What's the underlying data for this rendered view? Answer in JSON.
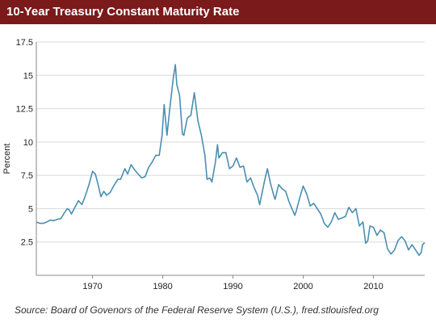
{
  "header": {
    "title": "10-Year Treasury Constant Maturity Rate"
  },
  "footer": {
    "source": "Source: Board of Govenors of the Federal Reserve System (U.S.), fred.stlouisfed.org"
  },
  "colors": {
    "title_bg": "#7b1a1a",
    "line": "#4a8fb0",
    "grid": "#d9d9d9",
    "axis": "#888888"
  },
  "chart_data": {
    "type": "line",
    "title": "10-Year Treasury Constant Maturity Rate",
    "xlabel": "",
    "ylabel": "Percent",
    "xlim": [
      1962,
      2017.3
    ],
    "ylim": [
      0,
      17.5
    ],
    "xticks": [
      1970,
      1980,
      1990,
      2000,
      2010
    ],
    "yticks": [
      2.5,
      5,
      7.5,
      10,
      12.5,
      15,
      17.5
    ],
    "ytick_labels": [
      "2.5",
      "5",
      "7.5",
      "10",
      "12.5",
      "15",
      "17.5"
    ],
    "grid": "horizontal",
    "legend": "none",
    "series": [
      {
        "x": [
          1962.0,
          1962.5,
          1963.0,
          1963.5,
          1964.0,
          1964.5,
          1965.0,
          1965.5,
          1966.0,
          1966.4,
          1966.7,
          1967.0,
          1967.5,
          1968.0,
          1968.5,
          1969.0,
          1969.5,
          1970.0,
          1970.4,
          1970.8,
          1971.2,
          1971.6,
          1972.0,
          1972.5,
          1973.0,
          1973.6,
          1974.0,
          1974.6,
          1975.0,
          1975.5,
          1976.0,
          1976.5,
          1977.0,
          1977.5,
          1978.0,
          1978.5,
          1979.0,
          1979.5,
          1979.9,
          1980.2,
          1980.6,
          1981.0,
          1981.5,
          1981.8,
          1982.0,
          1982.4,
          1982.8,
          1983.0,
          1983.5,
          1984.0,
          1984.5,
          1985.0,
          1985.5,
          1986.0,
          1986.3,
          1986.7,
          1987.0,
          1987.5,
          1987.8,
          1988.0,
          1988.5,
          1989.0,
          1989.5,
          1990.0,
          1990.5,
          1991.0,
          1991.5,
          1992.0,
          1992.5,
          1993.0,
          1993.5,
          1993.8,
          1994.0,
          1994.5,
          1994.9,
          1995.3,
          1995.8,
          1996.0,
          1996.5,
          1997.0,
          1997.5,
          1998.0,
          1998.8,
          1999.0,
          1999.5,
          2000.0,
          2000.5,
          2001.0,
          2001.5,
          2002.0,
          2002.5,
          2003.0,
          2003.5,
          2004.0,
          2004.5,
          2005.0,
          2005.5,
          2006.0,
          2006.5,
          2007.0,
          2007.5,
          2008.0,
          2008.5,
          2008.9,
          2009.2,
          2009.5,
          2010.0,
          2010.5,
          2011.0,
          2011.5,
          2012.0,
          2012.5,
          2013.0,
          2013.5,
          2014.0,
          2014.5,
          2015.0,
          2015.5,
          2016.0,
          2016.5,
          2016.8,
          2017.0,
          2017.3
        ],
        "y": [
          4.0,
          3.9,
          3.9,
          4.0,
          4.15,
          4.1,
          4.2,
          4.25,
          4.7,
          5.0,
          4.9,
          4.6,
          5.1,
          5.6,
          5.3,
          6.0,
          6.8,
          7.8,
          7.6,
          6.8,
          5.9,
          6.3,
          6.0,
          6.2,
          6.7,
          7.2,
          7.2,
          8.0,
          7.6,
          8.3,
          7.9,
          7.6,
          7.3,
          7.4,
          8.1,
          8.5,
          9.0,
          9.0,
          10.5,
          12.8,
          10.5,
          12.5,
          14.8,
          15.8,
          14.3,
          13.5,
          10.6,
          10.5,
          11.8,
          12.0,
          13.7,
          11.6,
          10.5,
          9.0,
          7.2,
          7.3,
          7.0,
          8.5,
          9.8,
          8.8,
          9.2,
          9.2,
          8.0,
          8.2,
          8.8,
          8.1,
          8.2,
          7.0,
          7.3,
          6.6,
          6.0,
          5.3,
          5.8,
          7.1,
          8.0,
          7.0,
          6.0,
          5.7,
          6.8,
          6.5,
          6.3,
          5.5,
          4.5,
          4.8,
          5.8,
          6.7,
          6.1,
          5.2,
          5.4,
          5.0,
          4.6,
          3.9,
          3.6,
          4.0,
          4.7,
          4.2,
          4.3,
          4.4,
          5.1,
          4.7,
          5.0,
          3.7,
          4.0,
          2.4,
          2.6,
          3.7,
          3.6,
          3.0,
          3.4,
          3.2,
          2.0,
          1.6,
          1.9,
          2.6,
          2.9,
          2.6,
          1.9,
          2.3,
          1.9,
          1.5,
          1.7,
          2.3,
          2.45
        ]
      }
    ]
  }
}
